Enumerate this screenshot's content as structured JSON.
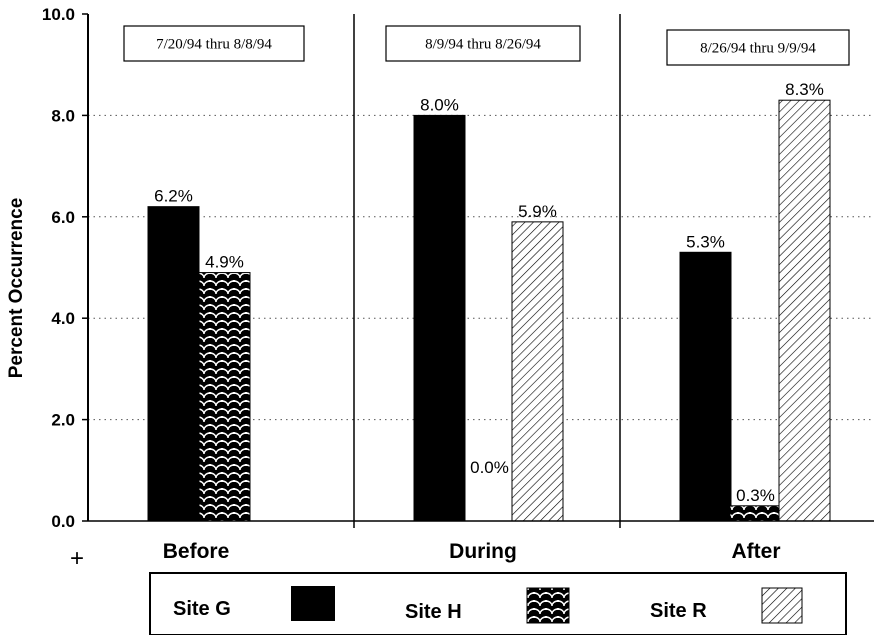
{
  "chart_data": {
    "type": "bar",
    "ylabel": "Percent Occurrence",
    "xlabel": "",
    "ylim": [
      0,
      10
    ],
    "yticks": [
      "0.0",
      "2.0",
      "4.0",
      "6.0",
      "8.0",
      "10.0"
    ],
    "grid": "horizontal dotted",
    "categories": [
      "Before",
      "During",
      "After"
    ],
    "periods": [
      "7/20/94 thru 8/8/94",
      "8/9/94 thru 8/26/94",
      "8/26/94 thru 9/9/94"
    ],
    "series": [
      {
        "name": "Site G",
        "pattern": "solid",
        "values": [
          6.2,
          8.0,
          5.3
        ],
        "labels": [
          "6.2%",
          "8.0%",
          "5.3%"
        ]
      },
      {
        "name": "Site H",
        "pattern": "scales",
        "values": [
          4.9,
          0.0,
          0.3
        ],
        "labels": [
          "4.9%",
          "0.0%",
          "0.3%"
        ]
      },
      {
        "name": "Site R",
        "pattern": "diagonal-hatch",
        "values": [
          null,
          5.9,
          8.3
        ],
        "labels": [
          null,
          "5.9%",
          "8.3%"
        ]
      }
    ],
    "legend_position": "bottom",
    "stray_mark": "+"
  },
  "colors": {
    "bar": "#000000",
    "background": "#ffffff",
    "grid": "#555555"
  }
}
